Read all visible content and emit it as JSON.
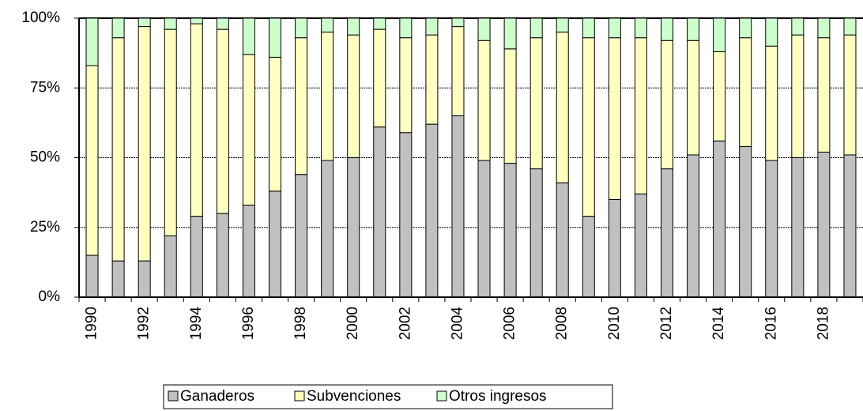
{
  "chart_data": {
    "type": "stacked-bar",
    "categories": [
      "1990",
      null,
      "1992",
      null,
      "1994",
      null,
      "1996",
      null,
      "1998",
      null,
      "2000",
      null,
      "2002",
      null,
      "2004",
      null,
      "2006",
      null,
      "2008",
      null,
      "2010",
      null,
      "2012",
      null,
      "2014",
      null,
      "2016",
      null,
      "2018",
      null
    ],
    "series": [
      {
        "name": "Ganaderos",
        "color": "#c0c0c0",
        "values": [
          15,
          13,
          13,
          22,
          29,
          30,
          33,
          38,
          44,
          49,
          50,
          61,
          59,
          62,
          65,
          49,
          48,
          46,
          41,
          29,
          35,
          37,
          46,
          51,
          56,
          54,
          49,
          50,
          52,
          51
        ]
      },
      {
        "name": "Subvenciones",
        "color": "#ffffc0",
        "values": [
          68,
          80,
          84,
          74,
          69,
          66,
          54,
          48,
          49,
          46,
          44,
          35,
          34,
          32,
          32,
          43,
          41,
          47,
          54,
          64,
          58,
          56,
          46,
          41,
          32,
          39,
          41,
          44,
          41,
          43
        ]
      },
      {
        "name": "Otros ingresos",
        "color": "#ccffcc",
        "values": [
          17,
          7,
          3,
          4,
          2,
          4,
          13,
          14,
          7,
          5,
          6,
          4,
          7,
          6,
          3,
          8,
          11,
          7,
          5,
          7,
          7,
          7,
          8,
          8,
          12,
          7,
          10,
          6,
          7,
          6
        ]
      }
    ],
    "ylim": [
      0,
      100
    ],
    "yticks": [
      {
        "value": 0,
        "label": "0%"
      },
      {
        "value": 25,
        "label": "25%"
      },
      {
        "value": 50,
        "label": "50%"
      },
      {
        "value": 75,
        "label": "75%"
      },
      {
        "value": 100,
        "label": "100%"
      }
    ],
    "grid": true
  }
}
